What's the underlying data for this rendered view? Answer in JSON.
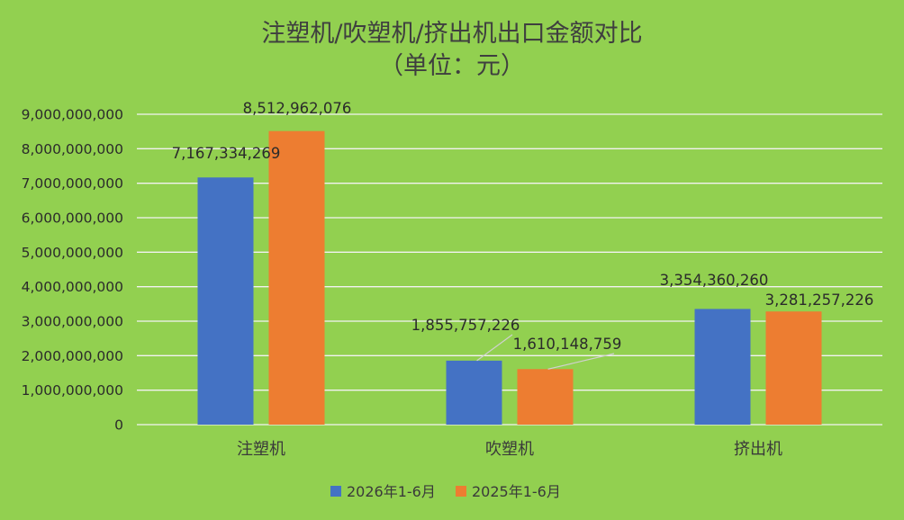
{
  "colors": {
    "background": "#92D050",
    "gridline": "#F2F2F2",
    "series_2026": "#4472C4",
    "series_2025": "#ED7D31",
    "leader_line": "#D0D0D0"
  },
  "chart_data": {
    "type": "bar",
    "title": "注塑机/吹塑机/挤出机出口金额对比",
    "subtitle": "（单位：元）",
    "xlabel": "",
    "ylabel": "",
    "categories": [
      "注塑机",
      "吹塑机",
      "挤出机"
    ],
    "series": [
      {
        "name": "2026年1-6月",
        "values": [
          7167334269,
          1855757226,
          3354360260
        ],
        "labels": [
          "7,167,334,269",
          "1,855,757,226",
          "3,354,360,260"
        ]
      },
      {
        "name": "2025年1-6月",
        "values": [
          8512962076,
          1610148759,
          3281257226
        ],
        "labels": [
          "8,512,962,076",
          "1,610,148,759",
          "3,281,257,226"
        ]
      }
    ],
    "ylim": [
      0,
      9000000000
    ],
    "yticks": [
      0,
      1000000000,
      2000000000,
      3000000000,
      4000000000,
      5000000000,
      6000000000,
      7000000000,
      8000000000,
      9000000000
    ],
    "ytick_labels": [
      "0",
      "1,000,000,000",
      "2,000,000,000",
      "3,000,000,000",
      "4,000,000,000",
      "5,000,000,000",
      "6,000,000,000",
      "7,000,000,000",
      "8,000,000,000",
      "9,000,000,000"
    ],
    "grid": true,
    "legend_position": "bottom"
  }
}
